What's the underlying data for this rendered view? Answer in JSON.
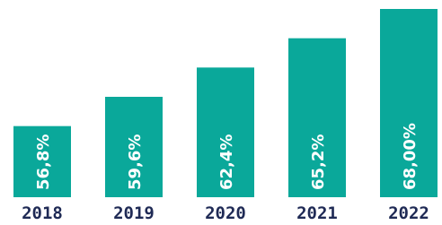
{
  "chart_data": {
    "type": "bar",
    "categories": [
      "2018",
      "2019",
      "2020",
      "2021",
      "2022"
    ],
    "values": [
      56.8,
      59.6,
      62.4,
      65.2,
      68.0
    ],
    "value_labels": [
      "56,8%",
      "59,6%",
      "62,4%",
      "65,2%",
      "68,00%"
    ],
    "color": "#0aa89a",
    "ylim": [
      50,
      68
    ]
  }
}
